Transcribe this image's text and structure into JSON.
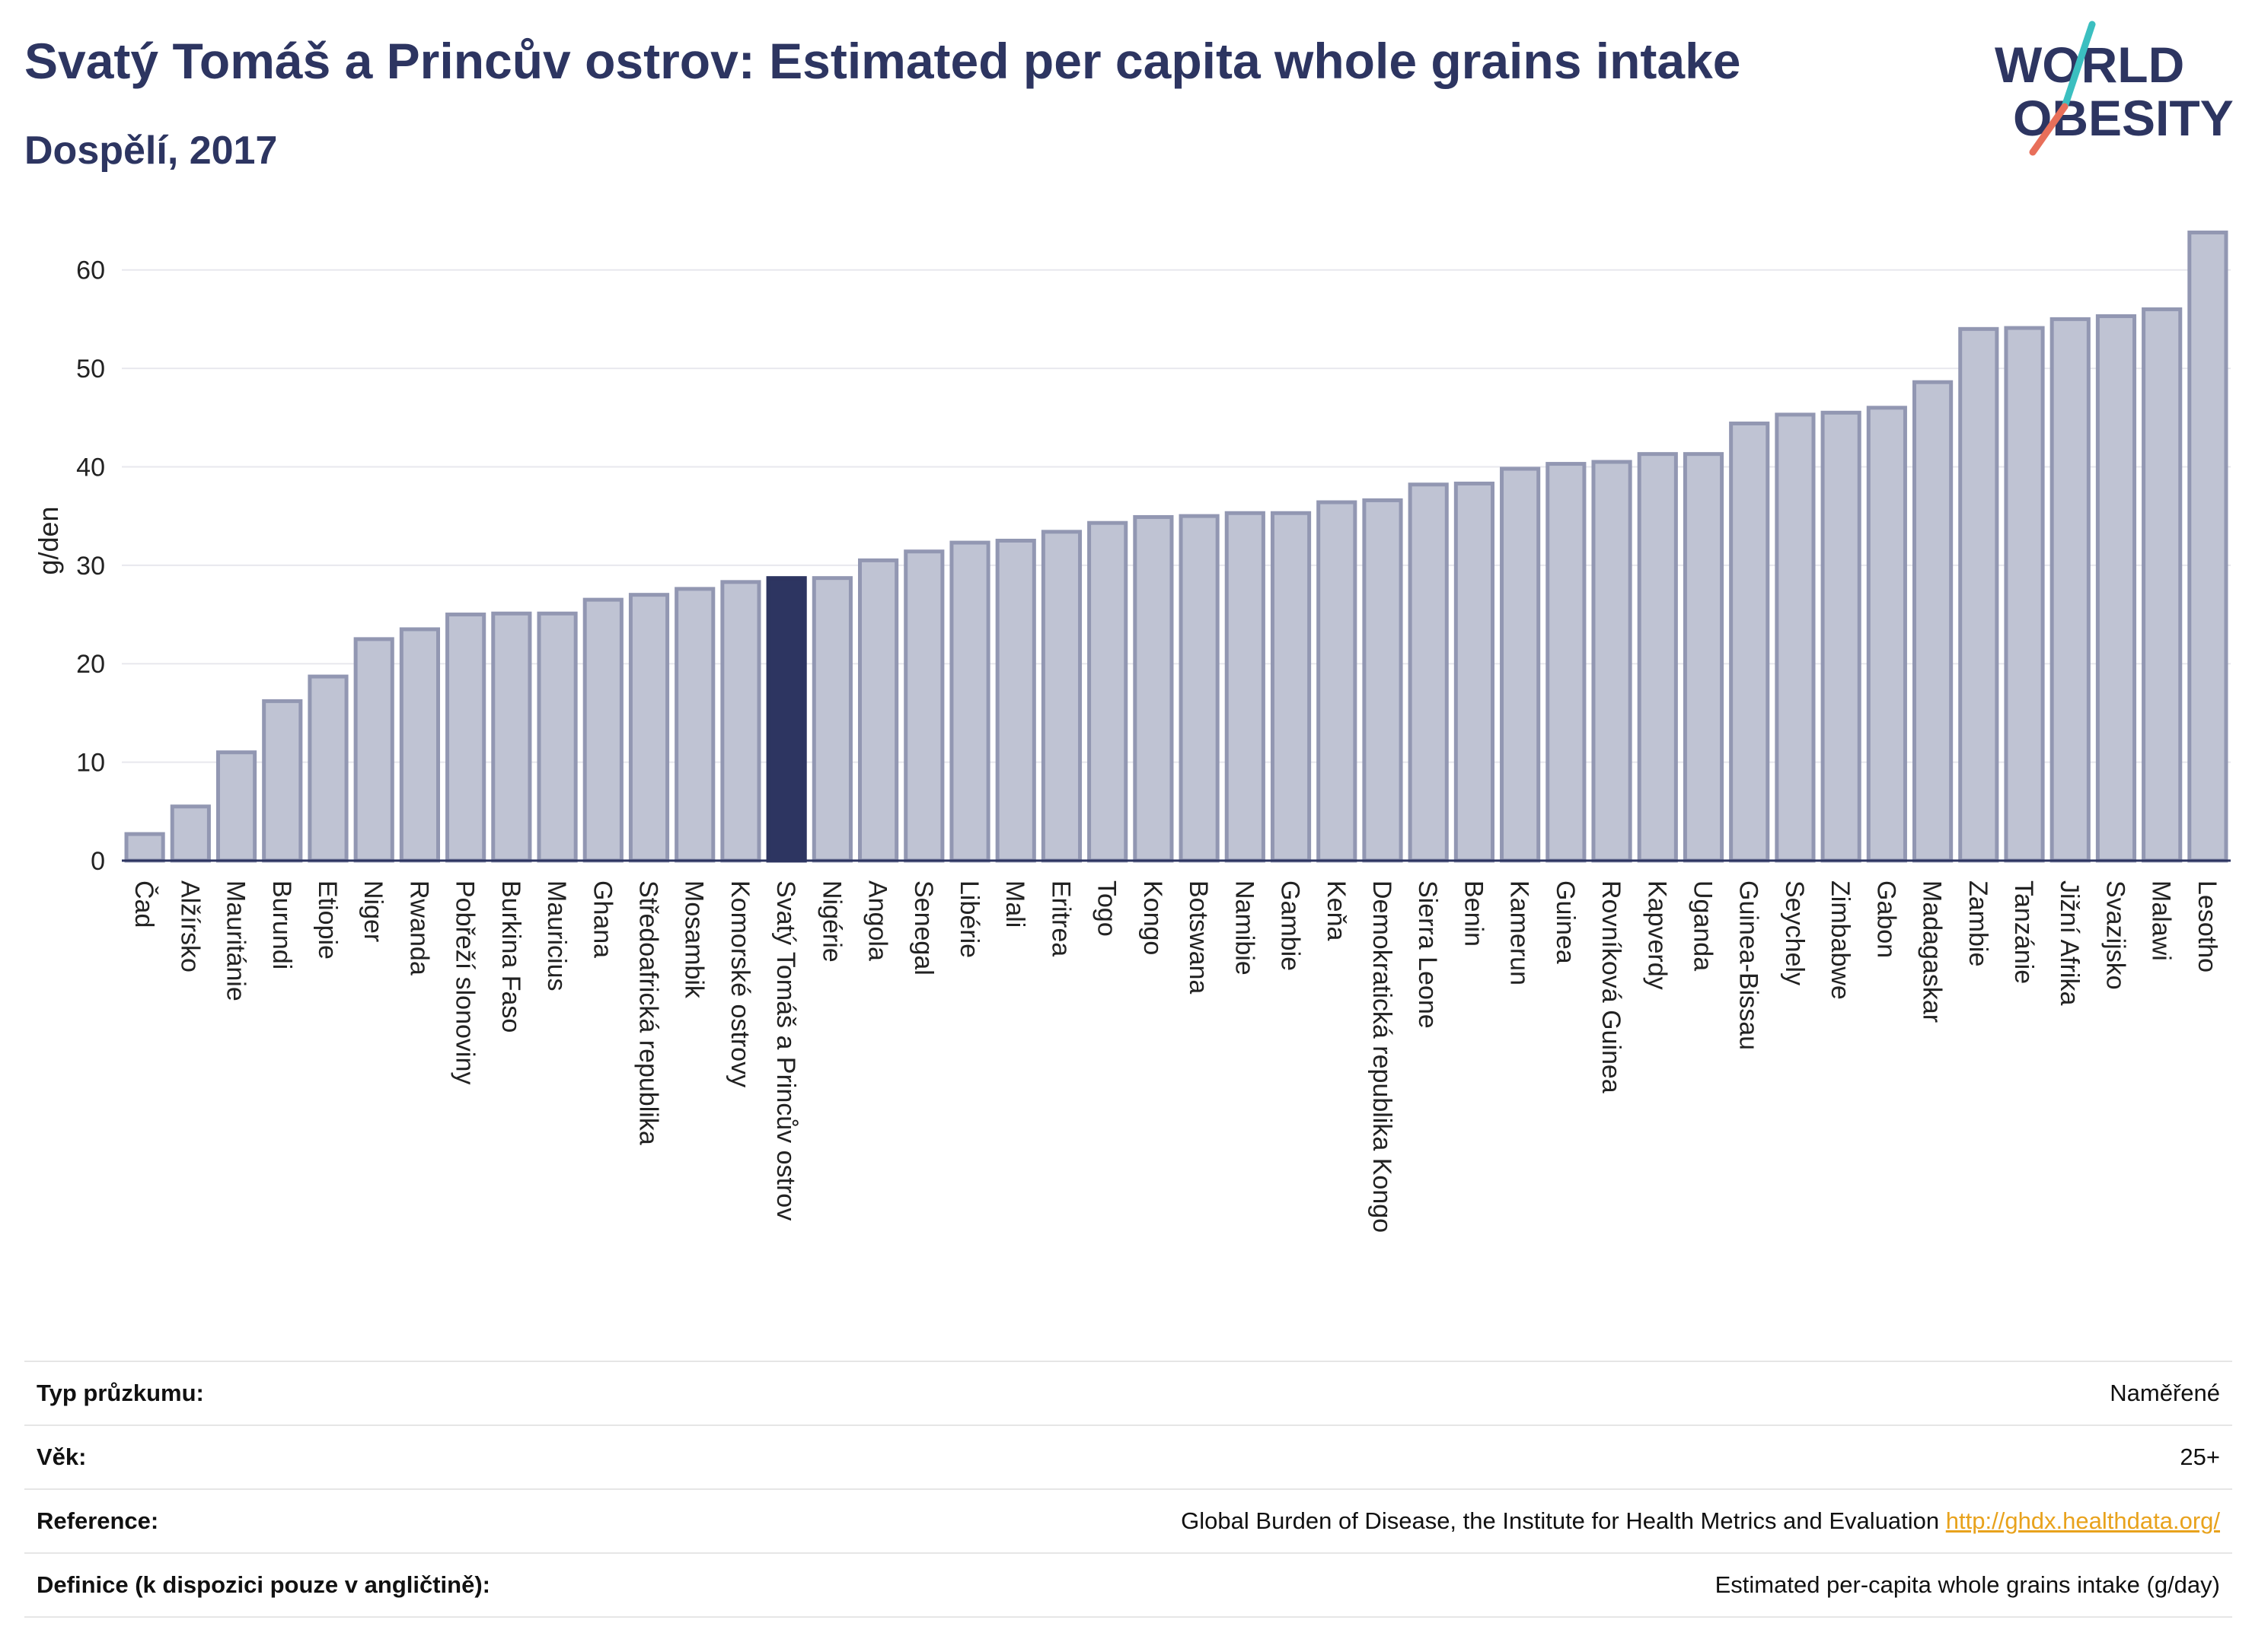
{
  "header": {
    "title": "Svatý Tomáš a Princův ostrov: Estimated per capita whole grains intake",
    "subtitle": "Dospělí, 2017"
  },
  "logo": {
    "line1": "WORLD",
    "line2": "OBESITY",
    "colors": {
      "text": "#2d3561",
      "slash_teal": "#3bbfc0",
      "slash_coral": "#e86f5a"
    }
  },
  "chart_data": {
    "type": "bar",
    "ylabel": "g/den",
    "ylim": [
      0,
      65
    ],
    "yticks": [
      0,
      10,
      20,
      30,
      40,
      50,
      60
    ],
    "grid": true,
    "highlight_category": "Svatý Tomáš a Princův ostrov",
    "colors": {
      "bar": "#bfc3d3",
      "bar_border": "#9297b2",
      "highlight": "#2d3561",
      "grid": "#e8e8ee"
    },
    "categories": [
      "Čad",
      "Alžírsko",
      "Mauritánie",
      "Burundi",
      "Etiopie",
      "Niger",
      "Rwanda",
      "Pobřeží slonoviny",
      "Burkina Faso",
      "Mauricius",
      "Ghana",
      "Středoafrická republika",
      "Mosambik",
      "Komorské ostrovy",
      "Svatý Tomáš a Princův ostrov",
      "Nigérie",
      "Angola",
      "Senegal",
      "Libérie",
      "Mali",
      "Eritrea",
      "Togo",
      "Kongo",
      "Botswana",
      "Namibie",
      "Gambie",
      "Keňa",
      "Demokratická republika Kongo",
      "Sierra Leone",
      "Benin",
      "Kamerun",
      "Guinea",
      "Rovníková Guinea",
      "Kapverdy",
      "Uganda",
      "Guinea-Bissau",
      "Seychely",
      "Zimbabwe",
      "Gabon",
      "Madagaskar",
      "Zambie",
      "Tanzánie",
      "Jižní Afrika",
      "Svazijsko",
      "Malawi",
      "Lesotho"
    ],
    "values": [
      2.7,
      5.5,
      11.0,
      16.2,
      18.7,
      22.5,
      23.5,
      25.0,
      25.1,
      25.1,
      26.5,
      27.0,
      27.6,
      28.3,
      28.7,
      28.7,
      30.5,
      31.4,
      32.3,
      32.5,
      33.4,
      34.3,
      34.9,
      35.0,
      35.3,
      35.3,
      36.4,
      36.6,
      38.2,
      38.3,
      39.8,
      40.3,
      40.5,
      41.3,
      41.3,
      44.4,
      45.3,
      45.5,
      46.0,
      48.6,
      54.0,
      54.1,
      55.0,
      55.3,
      56.0,
      63.8
    ]
  },
  "info": {
    "rows": [
      {
        "label": "Typ průzkumu:",
        "value": "Naměřené"
      },
      {
        "label": "Věk:",
        "value": "25+"
      },
      {
        "label": "Reference:",
        "value": "Global Burden of Disease, the Institute for Health Metrics and Evaluation",
        "link": "http://ghdx.healthdata.org/"
      },
      {
        "label": "Definice (k dispozici pouze v angličtině):",
        "value": "Estimated per-capita whole grains intake (g/day)"
      }
    ]
  }
}
